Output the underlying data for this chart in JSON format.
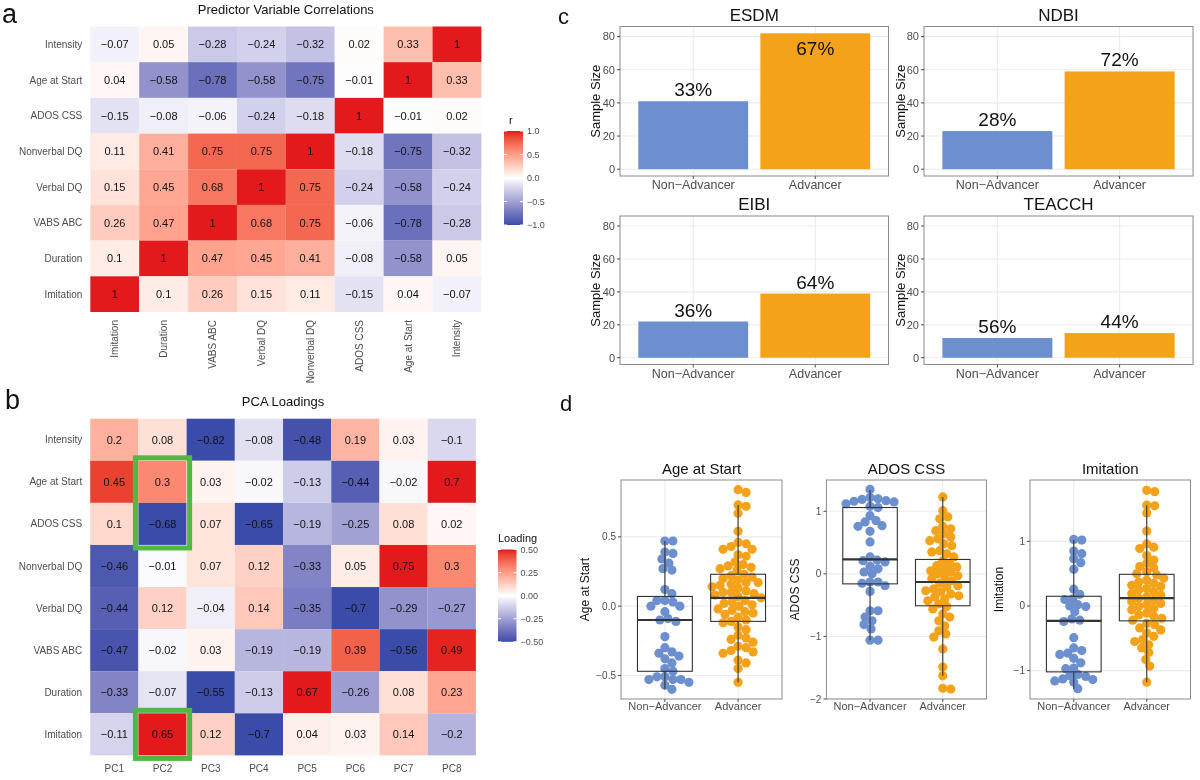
{
  "chart_data": [
    {
      "type": "heatmap",
      "title": "Predictor Variable Correlations",
      "annotations": [
        "a"
      ],
      "categories": [
        "Imitation",
        "Duration",
        "VABS ABC",
        "Verbal DQ",
        "Nonverbal DQ",
        "ADOS CSS",
        "Age at Start",
        "Intensity"
      ],
      "y_categories": [
        "Intensity",
        "Age at Start",
        "ADOS CSS",
        "Nonverbal DQ",
        "Verbal DQ",
        "VABS ABC",
        "Duration",
        "Imitation"
      ],
      "cells": [
        [
          -0.07,
          0.05,
          -0.28,
          -0.24,
          -0.32,
          0.02,
          0.33,
          1
        ],
        [
          0.04,
          -0.58,
          -0.78,
          -0.58,
          -0.75,
          -0.01,
          1,
          0.33
        ],
        [
          -0.15,
          -0.08,
          -0.06,
          -0.24,
          -0.18,
          1,
          -0.01,
          0.02
        ],
        [
          0.11,
          0.41,
          0.75,
          0.75,
          1,
          -0.18,
          -0.75,
          -0.32
        ],
        [
          0.15,
          0.45,
          0.68,
          1,
          0.75,
          -0.24,
          -0.58,
          -0.24
        ],
        [
          0.26,
          0.47,
          1,
          0.68,
          0.75,
          -0.06,
          -0.78,
          -0.28
        ],
        [
          0.1,
          1,
          0.47,
          0.45,
          0.41,
          -0.08,
          -0.58,
          0.05
        ],
        [
          1,
          0.1,
          0.26,
          0.15,
          0.11,
          -0.15,
          0.04,
          -0.07
        ]
      ],
      "data_labels": true,
      "clabel": "r",
      "clim": [
        -1,
        1
      ],
      "cticks": [
        {
          "value": -1,
          "label": "−1.0"
        },
        {
          "value": -0.5,
          "label": "−0.5"
        },
        {
          "value": 0,
          "label": "0.0"
        },
        {
          "value": 0.5,
          "label": "0.5"
        },
        {
          "value": 1,
          "label": "1.0"
        }
      ],
      "colors": [
        "#3a4ca8",
        "#ffffff",
        "#e3191c"
      ]
    },
    {
      "type": "heatmap",
      "title": "PCA Loadings",
      "annotations": [
        "b"
      ],
      "categories": [
        "PC1",
        "PC2",
        "PC3",
        "PC4",
        "PC5",
        "PC6",
        "PC7",
        "PC8"
      ],
      "y_categories": [
        "Intensity",
        "Age at Start",
        "ADOS CSS",
        "Nonverbal DQ",
        "Verbal DQ",
        "VABS ABC",
        "Duration",
        "Imitation"
      ],
      "cells": [
        [
          0.2,
          0.08,
          -0.82,
          -0.08,
          -0.48,
          0.19,
          0.03,
          -0.1
        ],
        [
          0.45,
          0.3,
          0.03,
          -0.02,
          -0.13,
          -0.44,
          -0.02,
          0.7
        ],
        [
          0.1,
          -0.68,
          0.07,
          -0.65,
          -0.19,
          -0.25,
          0.08,
          0.02
        ],
        [
          -0.46,
          -0.01,
          0.07,
          0.12,
          -0.33,
          0.05,
          0.75,
          0.3
        ],
        [
          -0.44,
          0.12,
          -0.04,
          0.14,
          -0.35,
          -0.7,
          -0.29,
          -0.27
        ],
        [
          -0.47,
          -0.02,
          0.03,
          -0.19,
          -0.19,
          0.39,
          -0.56,
          0.49
        ],
        [
          -0.33,
          -0.07,
          -0.55,
          -0.13,
          0.67,
          -0.26,
          0.08,
          0.23
        ],
        [
          -0.11,
          0.65,
          0.12,
          -0.7,
          0.04,
          0.03,
          0.14,
          -0.2
        ]
      ],
      "data_labels": true,
      "clabel": "Loading",
      "clim": [
        -0.5,
        0.5
      ],
      "cticks": [
        {
          "value": -0.5,
          "label": "−0.50"
        },
        {
          "value": -0.25,
          "label": "−0.25"
        },
        {
          "value": 0,
          "label": "0.00"
        },
        {
          "value": 0.25,
          "label": "0.25"
        },
        {
          "value": 0.5,
          "label": "0.50"
        }
      ],
      "colors": [
        "#3a4ca8",
        "#ffffff",
        "#e3191c"
      ]
    },
    {
      "type": "bar",
      "title": "ESDM",
      "annotations": [
        "c",
        {
          "text": "33%",
          "x": "Non−Advancer",
          "y": 41
        },
        {
          "text": "67%",
          "x": "Advancer",
          "y": 82
        }
      ],
      "ylabel": "Sample Size",
      "categories": [
        "Non−Advancer",
        "Advancer"
      ],
      "values": [
        41,
        82
      ],
      "colors": [
        "#6b8fcf",
        "#f5a21b"
      ],
      "ylim": [
        -4.1,
        86.1
      ],
      "yticks": [
        0,
        20,
        40,
        60,
        80
      ],
      "grid": true
    },
    {
      "type": "bar",
      "title": "NDBI",
      "annotations": [
        {
          "text": "28%",
          "x": "Non−Advancer",
          "y": 23
        },
        {
          "text": "72%",
          "x": "Advancer",
          "y": 59
        }
      ],
      "ylabel": "Sample Size",
      "categories": [
        "Non−Advancer",
        "Advancer"
      ],
      "values": [
        23,
        59
      ],
      "colors": [
        "#6b8fcf",
        "#f5a21b"
      ],
      "ylim": [
        -4.1,
        86.1
      ],
      "yticks": [
        0,
        20,
        40,
        60,
        80
      ],
      "grid": true
    },
    {
      "type": "bar",
      "title": "EIBI",
      "annotations": [
        {
          "text": "36%",
          "x": "Non−Advancer",
          "y": 22
        },
        {
          "text": "64%",
          "x": "Advancer",
          "y": 39
        }
      ],
      "ylabel": "Sample Size",
      "categories": [
        "Non−Advancer",
        "Advancer"
      ],
      "values": [
        22,
        39
      ],
      "colors": [
        "#6b8fcf",
        "#f5a21b"
      ],
      "ylim": [
        -4.1,
        86.1
      ],
      "yticks": [
        0,
        20,
        40,
        60,
        80
      ],
      "grid": true
    },
    {
      "type": "bar",
      "title": "TEACCH",
      "annotations": [
        {
          "text": "56%",
          "x": "Non−Advancer",
          "y": 12
        },
        {
          "text": "44%",
          "x": "Advancer",
          "y": 15
        }
      ],
      "ylabel": "Sample Size",
      "categories": [
        "Non−Advancer",
        "Advancer"
      ],
      "values": [
        12,
        15
      ],
      "colors": [
        "#6b8fcf",
        "#f5a21b"
      ],
      "ylim": [
        -4.1,
        86.1
      ],
      "yticks": [
        0,
        20,
        40,
        60,
        80
      ],
      "grid": true
    },
    {
      "type": "box",
      "title": "Age at Start",
      "annotations": [
        "d"
      ],
      "ylabel": "Age at Start",
      "categories": [
        "Non−Advancer",
        "Advancer"
      ],
      "color": "#333333",
      "marker": "circle",
      "grid": true,
      "ylim": [
        -0.67,
        0.91
      ],
      "yticks": [
        {
          "value": -0.5,
          "label": "−0.5"
        },
        {
          "value": 0,
          "label": "0.0"
        },
        0.5
      ],
      "boxes": [
        {
          "low": -0.6,
          "q1": -0.47,
          "median": -0.1,
          "q3": 0.07,
          "high": 0.47
        },
        {
          "low": -0.55,
          "q1": -0.11,
          "median": 0.06,
          "q3": 0.23,
          "high": 0.73
        }
      ],
      "series": [
        {
          "type": "scatter",
          "color": "#6b8fcf",
          "x": [
            "Non−Advancer",
            "Non−Advancer",
            "Non−Advancer",
            "Non−Advancer",
            "Non−Advancer",
            "Non−Advancer",
            "Non−Advancer",
            "Non−Advancer",
            "Non−Advancer",
            "Non−Advancer",
            "Non−Advancer",
            "Non−Advancer",
            "Non−Advancer",
            "Non−Advancer",
            "Non−Advancer",
            "Non−Advancer",
            "Non−Advancer",
            "Non−Advancer",
            "Non−Advancer",
            "Non−Advancer",
            "Non−Advancer",
            "Non−Advancer",
            "Non−Advancer",
            "Non−Advancer",
            "Non−Advancer",
            "Non−Advancer",
            "Non−Advancer",
            "Non−Advancer",
            "Non−Advancer",
            "Non−Advancer",
            "Non−Advancer",
            "Non−Advancer",
            "Non−Advancer",
            "Non−Advancer",
            "Non−Advancer",
            "Non−Advancer"
          ],
          "values": [
            0.47,
            0.47,
            0.39,
            0.38,
            0.34,
            0.31,
            0.27,
            0.26,
            0.12,
            0.09,
            0.04,
            0.03,
            0.04,
            0.0,
            0.0,
            -0.04,
            -0.09,
            -0.1,
            -0.11,
            -0.22,
            -0.3,
            -0.33,
            -0.34,
            -0.36,
            -0.38,
            -0.41,
            -0.45,
            -0.47,
            -0.51,
            -0.53,
            -0.53,
            -0.51,
            -0.53,
            -0.55,
            -0.57,
            -0.6
          ]
        },
        {
          "type": "scatter",
          "color": "#f5a21b",
          "x": [
            "Advancer",
            "Advancer",
            "Advancer",
            "Advancer",
            "Advancer",
            "Advancer",
            "Advancer",
            "Advancer",
            "Advancer",
            "Advancer",
            "Advancer",
            "Advancer",
            "Advancer",
            "Advancer",
            "Advancer",
            "Advancer",
            "Advancer",
            "Advancer",
            "Advancer",
            "Advancer",
            "Advancer",
            "Advancer",
            "Advancer",
            "Advancer",
            "Advancer",
            "Advancer",
            "Advancer",
            "Advancer",
            "Advancer",
            "Advancer",
            "Advancer",
            "Advancer",
            "Advancer",
            "Advancer",
            "Advancer",
            "Advancer",
            "Advancer",
            "Advancer",
            "Advancer",
            "Advancer",
            "Advancer",
            "Advancer",
            "Advancer",
            "Advancer",
            "Advancer",
            "Advancer",
            "Advancer",
            "Advancer",
            "Advancer",
            "Advancer",
            "Advancer",
            "Advancer",
            "Advancer",
            "Advancer",
            "Advancer",
            "Advancer",
            "Advancer",
            "Advancer",
            "Advancer",
            "Advancer",
            "Advancer",
            "Advancer",
            "Advancer",
            "Advancer",
            "Advancer",
            "Advancer"
          ],
          "values": [
            0.84,
            0.82,
            0.73,
            0.72,
            0.67,
            0.54,
            0.46,
            0.45,
            0.43,
            0.41,
            0.41,
            0.37,
            0.36,
            0.32,
            0.3,
            0.29,
            0.28,
            0.27,
            0.26,
            0.23,
            0.22,
            0.21,
            0.2,
            0.19,
            0.17,
            0.17,
            0.16,
            0.15,
            0.14,
            0.13,
            0.11,
            0.1,
            0.1,
            0.09,
            0.08,
            0.07,
            0.06,
            0.04,
            0.03,
            0.02,
            0.01,
            0.0,
            -0.02,
            -0.03,
            -0.04,
            -0.05,
            -0.06,
            -0.08,
            -0.1,
            -0.11,
            -0.12,
            -0.15,
            -0.17,
            -0.21,
            -0.23,
            -0.24,
            -0.26,
            -0.29,
            -0.3,
            -0.32,
            -0.33,
            -0.34,
            -0.39,
            -0.41,
            -0.45,
            -0.55
          ]
        }
      ]
    },
    {
      "type": "box",
      "title": "ADOS CSS",
      "ylabel": "ADOS CSS",
      "categories": [
        "Non−Advancer",
        "Advancer"
      ],
      "color": "#333333",
      "marker": "circle",
      "grid": true,
      "ylim": [
        -2,
        1.5
      ],
      "yticks": [
        {
          "value": -2,
          "label": "−2"
        },
        {
          "value": -1,
          "label": "−1"
        },
        0,
        1
      ],
      "boxes": [
        {
          "low": -1.06,
          "q1": -0.16,
          "median": 0.23,
          "q3": 1.06,
          "high": 1.34
        },
        {
          "low": -1.63,
          "q1": -0.51,
          "median": -0.13,
          "q3": 0.23,
          "high": 1.23
        }
      ],
      "series": [
        {
          "type": "scatter",
          "color": "#6b8fcf",
          "x": [
            "Non−Advancer",
            "Non−Advancer",
            "Non−Advancer",
            "Non−Advancer",
            "Non−Advancer",
            "Non−Advancer",
            "Non−Advancer",
            "Non−Advancer",
            "Non−Advancer",
            "Non−Advancer",
            "Non−Advancer",
            "Non−Advancer",
            "Non−Advancer",
            "Non−Advancer",
            "Non−Advancer",
            "Non−Advancer",
            "Non−Advancer",
            "Non−Advancer",
            "Non−Advancer",
            "Non−Advancer",
            "Non−Advancer",
            "Non−Advancer",
            "Non−Advancer",
            "Non−Advancer",
            "Non−Advancer",
            "Non−Advancer",
            "Non−Advancer",
            "Non−Advancer",
            "Non−Advancer",
            "Non−Advancer",
            "Non−Advancer",
            "Non−Advancer",
            "Non−Advancer",
            "Non−Advancer",
            "Non−Advancer",
            "Non−Advancer",
            "Non−Advancer",
            "Non−Advancer"
          ],
          "values": [
            1.35,
            1.22,
            1.2,
            1.19,
            1.17,
            1.16,
            1.15,
            1.12,
            1.08,
            1.06,
            0.93,
            0.85,
            0.83,
            0.77,
            0.76,
            0.68,
            0.51,
            0.27,
            0.22,
            0.21,
            0.19,
            0.12,
            0.08,
            0.03,
            0.0,
            -0.13,
            -0.13,
            -0.15,
            -0.19,
            -0.28,
            -0.59,
            -0.59,
            -0.69,
            -0.75,
            -0.81,
            -0.88,
            -1.06,
            -1.06
          ]
        },
        {
          "type": "scatter",
          "color": "#f5a21b",
          "x": [
            "Advancer",
            "Advancer",
            "Advancer",
            "Advancer",
            "Advancer",
            "Advancer",
            "Advancer",
            "Advancer",
            "Advancer",
            "Advancer",
            "Advancer",
            "Advancer",
            "Advancer",
            "Advancer",
            "Advancer",
            "Advancer",
            "Advancer",
            "Advancer",
            "Advancer",
            "Advancer",
            "Advancer",
            "Advancer",
            "Advancer",
            "Advancer",
            "Advancer",
            "Advancer",
            "Advancer",
            "Advancer",
            "Advancer",
            "Advancer",
            "Advancer",
            "Advancer",
            "Advancer",
            "Advancer",
            "Advancer",
            "Advancer",
            "Advancer",
            "Advancer",
            "Advancer",
            "Advancer",
            "Advancer",
            "Advancer",
            "Advancer",
            "Advancer",
            "Advancer",
            "Advancer",
            "Advancer",
            "Advancer",
            "Advancer",
            "Advancer",
            "Advancer",
            "Advancer",
            "Advancer",
            "Advancer",
            "Advancer"
          ],
          "values": [
            1.23,
            1.01,
            0.91,
            0.88,
            0.76,
            0.72,
            0.69,
            0.64,
            0.59,
            0.56,
            0.53,
            0.48,
            0.45,
            0.37,
            0.35,
            0.32,
            0.27,
            0.21,
            0.16,
            0.13,
            0.11,
            0.08,
            0.05,
            0.03,
            0.0,
            -0.03,
            -0.05,
            -0.08,
            -0.11,
            -0.15,
            -0.19,
            -0.21,
            -0.24,
            -0.27,
            -0.29,
            -0.32,
            -0.35,
            -0.37,
            -0.4,
            -0.43,
            -0.48,
            -0.52,
            -0.56,
            -0.64,
            -0.69,
            -0.75,
            -0.83,
            -0.91,
            -0.96,
            -1.01,
            -1.2,
            -1.49,
            -1.63,
            -1.83,
            -1.84
          ]
        }
      ]
    },
    {
      "type": "box",
      "title": "Imitation",
      "ylabel": "Imitation",
      "categories": [
        "Non−Advancer",
        "Advancer"
      ],
      "color": "#333333",
      "marker": "circle",
      "grid": true,
      "ylim": [
        -1.44,
        1.95
      ],
      "yticks": [
        {
          "value": -1,
          "label": "−1"
        },
        0,
        1
      ],
      "boxes": [
        {
          "low": -1.28,
          "q1": -1.02,
          "median": -0.23,
          "q3": 0.15,
          "high": 1.02
        },
        {
          "low": -1.18,
          "q1": -0.23,
          "median": 0.12,
          "q3": 0.49,
          "high": 1.56
        }
      ],
      "series": [
        {
          "type": "scatter",
          "color": "#6b8fcf",
          "x": [
            "Non−Advancer",
            "Non−Advancer",
            "Non−Advancer",
            "Non−Advancer",
            "Non−Advancer",
            "Non−Advancer",
            "Non−Advancer",
            "Non−Advancer",
            "Non−Advancer",
            "Non−Advancer",
            "Non−Advancer",
            "Non−Advancer",
            "Non−Advancer",
            "Non−Advancer",
            "Non−Advancer",
            "Non−Advancer",
            "Non−Advancer",
            "Non−Advancer",
            "Non−Advancer",
            "Non−Advancer",
            "Non−Advancer",
            "Non−Advancer",
            "Non−Advancer",
            "Non−Advancer",
            "Non−Advancer",
            "Non−Advancer",
            "Non−Advancer",
            "Non−Advancer",
            "Non−Advancer",
            "Non−Advancer",
            "Non−Advancer",
            "Non−Advancer",
            "Non−Advancer",
            "Non−Advancer",
            "Non−Advancer"
          ],
          "values": [
            1.03,
            1.02,
            0.85,
            0.81,
            0.73,
            0.67,
            0.57,
            0.26,
            0.18,
            0.11,
            0.1,
            0.02,
            0.0,
            -0.01,
            -0.09,
            -0.2,
            -0.22,
            -0.24,
            -0.49,
            -0.65,
            -0.69,
            -0.73,
            -0.75,
            -0.81,
            -0.88,
            -0.96,
            -0.97,
            -1.06,
            -1.08,
            -1.09,
            -1.13,
            -1.14,
            -1.16,
            -1.18,
            -1.28
          ]
        },
        {
          "type": "scatter",
          "color": "#f5a21b",
          "x": [
            "Advancer",
            "Advancer",
            "Advancer",
            "Advancer",
            "Advancer",
            "Advancer",
            "Advancer",
            "Advancer",
            "Advancer",
            "Advancer",
            "Advancer",
            "Advancer",
            "Advancer",
            "Advancer",
            "Advancer",
            "Advancer",
            "Advancer",
            "Advancer",
            "Advancer",
            "Advancer",
            "Advancer",
            "Advancer",
            "Advancer",
            "Advancer",
            "Advancer",
            "Advancer",
            "Advancer",
            "Advancer",
            "Advancer",
            "Advancer",
            "Advancer",
            "Advancer",
            "Advancer",
            "Advancer",
            "Advancer",
            "Advancer",
            "Advancer",
            "Advancer",
            "Advancer",
            "Advancer",
            "Advancer",
            "Advancer",
            "Advancer",
            "Advancer",
            "Advancer",
            "Advancer",
            "Advancer",
            "Advancer",
            "Advancer",
            "Advancer",
            "Advancer",
            "Advancer",
            "Advancer",
            "Advancer",
            "Advancer",
            "Advancer"
          ],
          "values": [
            1.79,
            1.77,
            1.56,
            1.55,
            1.44,
            1.16,
            0.96,
            0.91,
            0.89,
            0.78,
            0.71,
            0.66,
            0.61,
            0.59,
            0.53,
            0.5,
            0.48,
            0.43,
            0.4,
            0.37,
            0.35,
            0.32,
            0.3,
            0.27,
            0.25,
            0.22,
            0.19,
            0.17,
            0.14,
            0.12,
            0.09,
            0.07,
            0.04,
            0.02,
            -0.01,
            -0.04,
            -0.06,
            -0.11,
            -0.14,
            -0.16,
            -0.19,
            -0.22,
            -0.27,
            -0.29,
            -0.34,
            -0.37,
            -0.42,
            -0.47,
            -0.52,
            -0.55,
            -0.6,
            -0.65,
            -0.72,
            -0.83,
            -0.93,
            -1.18
          ]
        }
      ]
    }
  ]
}
